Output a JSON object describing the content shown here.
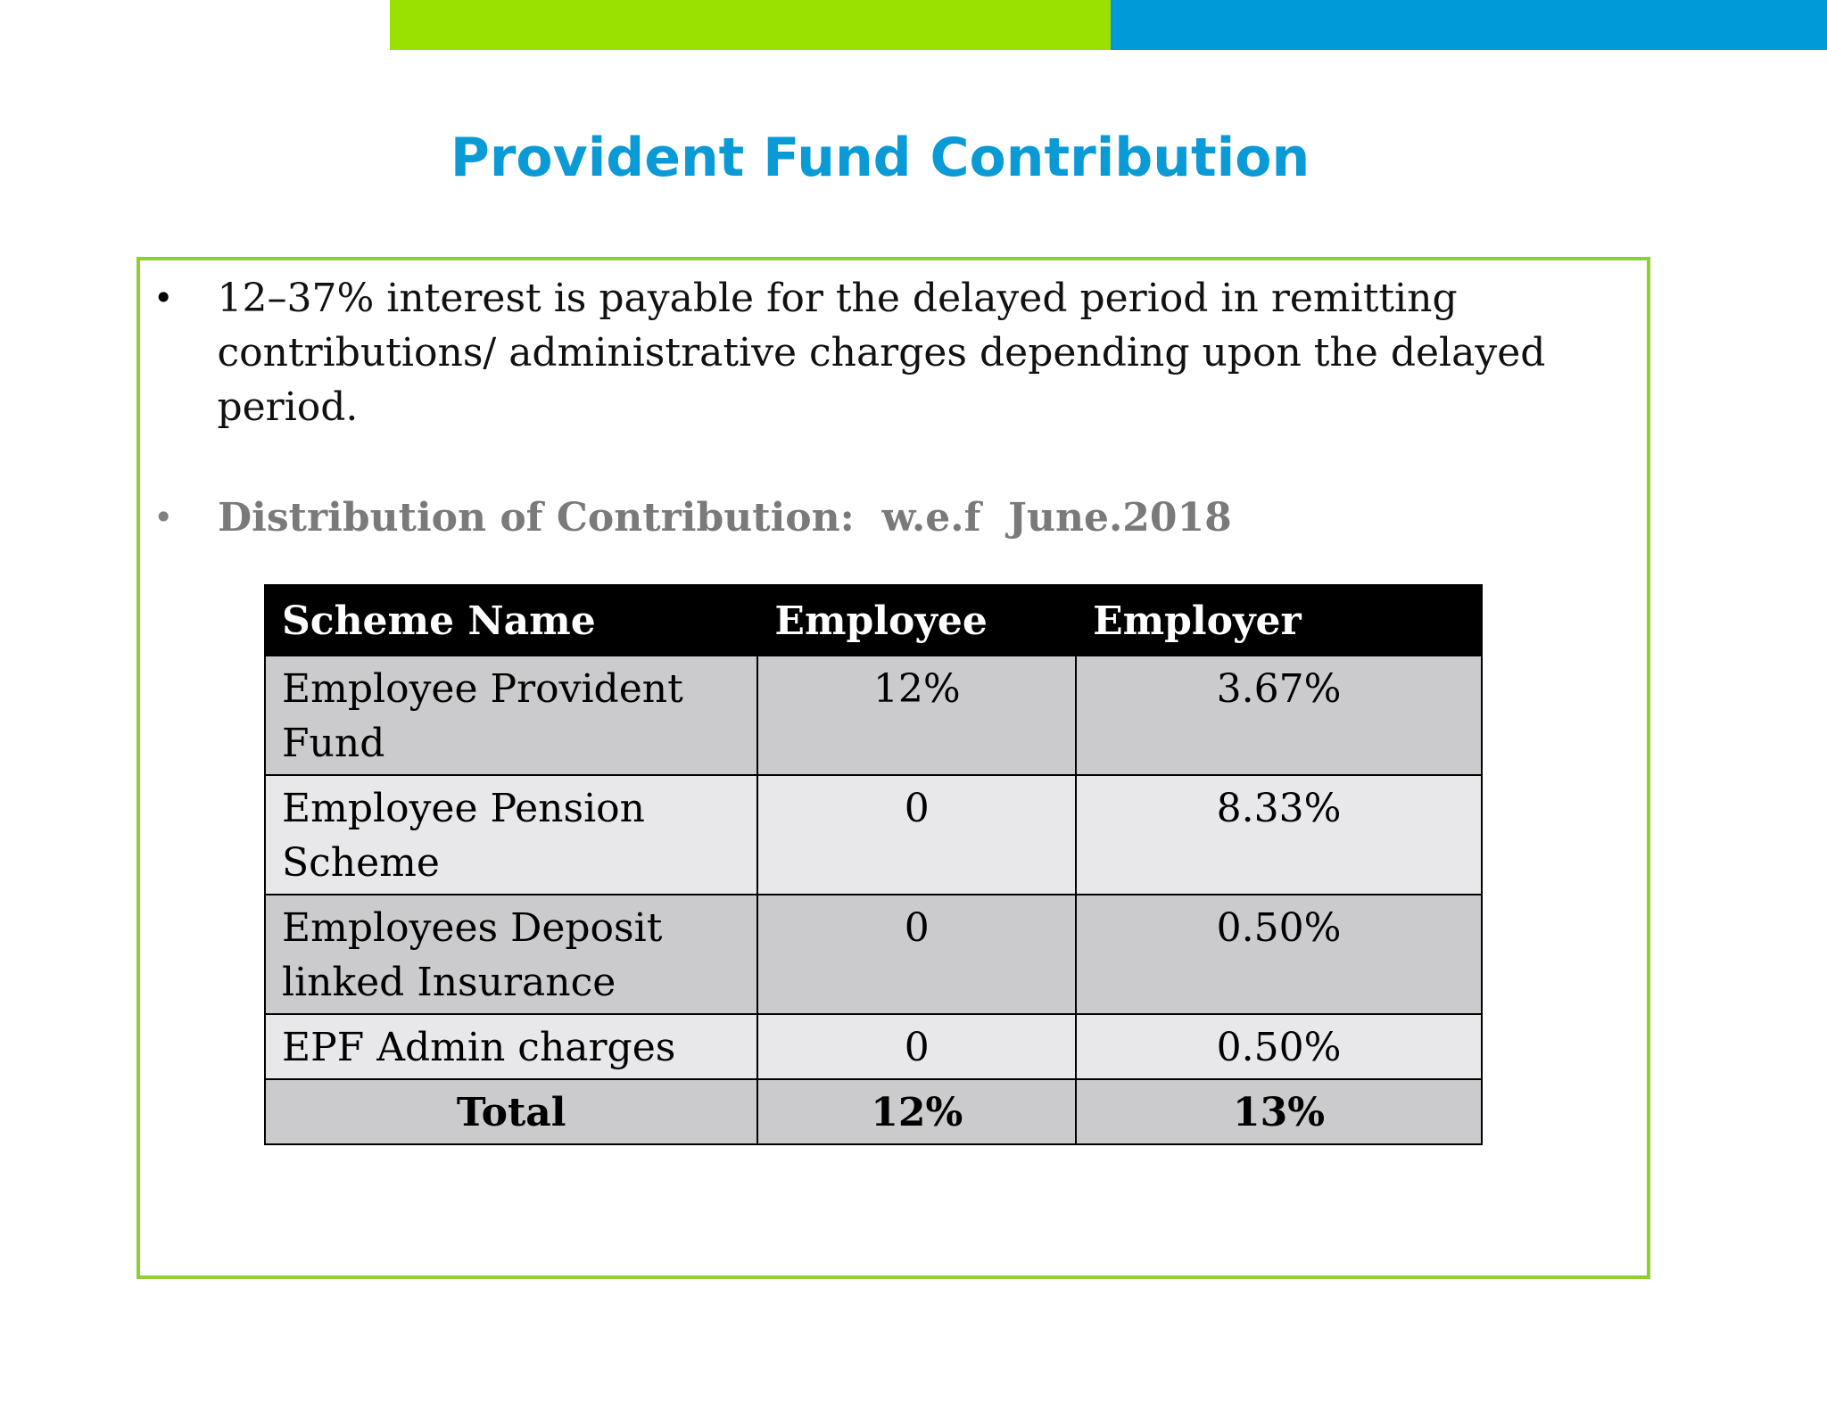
{
  "slide": {
    "title": "Provident Fund Contribution",
    "colors": {
      "title": "#0a9ad6",
      "bar_green": "#99e000",
      "bar_blue": "#009ad8",
      "box_border": "#8fd02e"
    }
  },
  "bullets": [
    {
      "symbol": "•",
      "text": " 12–37% interest is payable for the delayed period in remitting contributions/ administrative charges depending upon the delayed period."
    },
    {
      "symbol": "•",
      "text": "Distribution of Contribution:  w.e.f  June.2018"
    }
  ],
  "table": {
    "headers": [
      "Scheme Name",
      "Employee",
      "Employer"
    ],
    "rows": [
      {
        "scheme": "Employee Provident Fund",
        "employee": "12%",
        "employer": "3.67%"
      },
      {
        "scheme": "Employee Pension Scheme",
        "employee": "0",
        "employer": "8.33%"
      },
      {
        "scheme": "Employees Deposit linked Insurance",
        "employee": "0",
        "employer": "0.50%"
      },
      {
        "scheme": "EPF Admin charges",
        "employee": "0",
        "employer": "0.50%"
      }
    ],
    "total": {
      "label": "Total",
      "employee": "12%",
      "employer": "13%"
    }
  }
}
